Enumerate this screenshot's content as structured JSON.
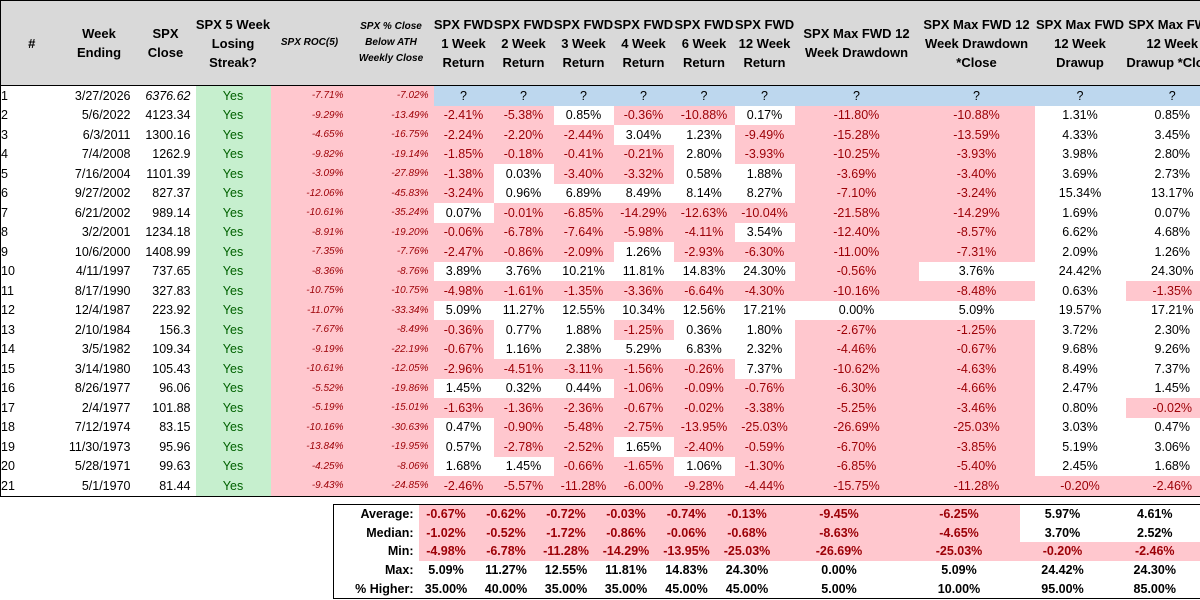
{
  "headers": {
    "idx": "#",
    "week": "Week Ending",
    "close": "SPX Close",
    "streak": "SPX 5 Week Losing Streak?",
    "roc": "SPX ROC(5)",
    "ath": "SPX % Close Below ATH Weekly Close",
    "fwd1": "SPX FWD 1 Week Return",
    "fwd2": "SPX FWD 2 Week Return",
    "fwd3": "SPX FWD 3 Week Return",
    "fwd4": "SPX FWD 4 Week Return",
    "fwd6": "SPX FWD 6 Week Return",
    "fwd12": "SPX FWD 12 Week Return",
    "maxdd": "SPX Max FWD 12 Week Drawdown",
    "maxdd_close": "SPX Max FWD 12 Week Drawdown *Close",
    "maxdu": "SPX Max FWD 12 Week Drawup",
    "maxdu_close": "SPX Max FWD 12 Week Drawup *Close"
  },
  "rows": [
    {
      "idx": "1",
      "week": "3/27/2026",
      "close": "6376.62",
      "streak": "Yes",
      "roc": "-7.71%",
      "ath": "-7.02%",
      "vals": [
        "?",
        "?",
        "?",
        "?",
        "?",
        "?",
        "?",
        "?",
        "?",
        "?"
      ]
    },
    {
      "idx": "2",
      "week": "5/6/2022",
      "close": "4123.34",
      "streak": "Yes",
      "roc": "-9.29%",
      "ath": "-13.49%",
      "vals": [
        "-2.41%",
        "-5.38%",
        "0.85%",
        "-0.36%",
        "-10.88%",
        "0.17%",
        "-11.80%",
        "-10.88%",
        "1.31%",
        "0.85%"
      ]
    },
    {
      "idx": "3",
      "week": "6/3/2011",
      "close": "1300.16",
      "streak": "Yes",
      "roc": "-4.65%",
      "ath": "-16.75%",
      "vals": [
        "-2.24%",
        "-2.20%",
        "-2.44%",
        "3.04%",
        "1.23%",
        "-9.49%",
        "-15.28%",
        "-13.59%",
        "4.33%",
        "3.45%"
      ]
    },
    {
      "idx": "4",
      "week": "7/4/2008",
      "close": "1262.9",
      "streak": "Yes",
      "roc": "-9.82%",
      "ath": "-19.14%",
      "vals": [
        "-1.85%",
        "-0.18%",
        "-0.41%",
        "-0.21%",
        "2.80%",
        "-3.93%",
        "-10.25%",
        "-3.93%",
        "3.98%",
        "2.80%"
      ]
    },
    {
      "idx": "5",
      "week": "7/16/2004",
      "close": "1101.39",
      "streak": "Yes",
      "roc": "-3.09%",
      "ath": "-27.89%",
      "vals": [
        "-1.38%",
        "0.03%",
        "-3.40%",
        "-3.32%",
        "0.58%",
        "1.88%",
        "-3.69%",
        "-3.40%",
        "3.69%",
        "2.73%"
      ]
    },
    {
      "idx": "6",
      "week": "9/27/2002",
      "close": "827.37",
      "streak": "Yes",
      "roc": "-12.06%",
      "ath": "-45.83%",
      "vals": [
        "-3.24%",
        "0.96%",
        "6.89%",
        "8.49%",
        "8.14%",
        "8.27%",
        "-7.10%",
        "-3.24%",
        "15.34%",
        "13.17%"
      ]
    },
    {
      "idx": "7",
      "week": "6/21/2002",
      "close": "989.14",
      "streak": "Yes",
      "roc": "-10.61%",
      "ath": "-35.24%",
      "vals": [
        "0.07%",
        "-0.01%",
        "-6.85%",
        "-14.29%",
        "-12.63%",
        "-10.04%",
        "-21.58%",
        "-14.29%",
        "1.69%",
        "0.07%"
      ]
    },
    {
      "idx": "8",
      "week": "3/2/2001",
      "close": "1234.18",
      "streak": "Yes",
      "roc": "-8.91%",
      "ath": "-19.20%",
      "vals": [
        "-0.06%",
        "-6.78%",
        "-7.64%",
        "-5.98%",
        "-4.11%",
        "3.54%",
        "-12.40%",
        "-8.57%",
        "6.62%",
        "4.68%"
      ]
    },
    {
      "idx": "9",
      "week": "10/6/2000",
      "close": "1408.99",
      "streak": "Yes",
      "roc": "-7.35%",
      "ath": "-7.76%",
      "vals": [
        "-2.47%",
        "-0.86%",
        "-2.09%",
        "1.26%",
        "-2.93%",
        "-6.30%",
        "-11.00%",
        "-7.31%",
        "2.09%",
        "1.26%"
      ]
    },
    {
      "idx": "10",
      "week": "4/11/1997",
      "close": "737.65",
      "streak": "Yes",
      "roc": "-8.36%",
      "ath": "-8.76%",
      "vals": [
        "3.89%",
        "3.76%",
        "10.21%",
        "11.81%",
        "14.83%",
        "24.30%",
        "-0.56%",
        "3.76%",
        "24.42%",
        "24.30%"
      ]
    },
    {
      "idx": "11",
      "week": "8/17/1990",
      "close": "327.83",
      "streak": "Yes",
      "roc": "-10.75%",
      "ath": "-10.75%",
      "vals": [
        "-4.98%",
        "-1.61%",
        "-1.35%",
        "-3.36%",
        "-6.64%",
        "-4.30%",
        "-10.16%",
        "-8.48%",
        "0.63%",
        "-1.35%"
      ]
    },
    {
      "idx": "12",
      "week": "12/4/1987",
      "close": "223.92",
      "streak": "Yes",
      "roc": "-11.07%",
      "ath": "-33.34%",
      "vals": [
        "5.09%",
        "11.27%",
        "12.55%",
        "10.34%",
        "12.56%",
        "17.21%",
        "0.00%",
        "5.09%",
        "19.57%",
        "17.21%"
      ]
    },
    {
      "idx": "13",
      "week": "2/10/1984",
      "close": "156.3",
      "streak": "Yes",
      "roc": "-7.67%",
      "ath": "-8.49%",
      "vals": [
        "-0.36%",
        "0.77%",
        "1.88%",
        "-1.25%",
        "0.36%",
        "1.80%",
        "-2.67%",
        "-1.25%",
        "3.72%",
        "2.30%"
      ]
    },
    {
      "idx": "14",
      "week": "3/5/1982",
      "close": "109.34",
      "streak": "Yes",
      "roc": "-9.19%",
      "ath": "-22.19%",
      "vals": [
        "-0.67%",
        "1.16%",
        "2.38%",
        "5.29%",
        "6.83%",
        "2.32%",
        "-4.46%",
        "-0.67%",
        "9.68%",
        "9.26%"
      ]
    },
    {
      "idx": "15",
      "week": "3/14/1980",
      "close": "105.43",
      "streak": "Yes",
      "roc": "-10.61%",
      "ath": "-12.05%",
      "vals": [
        "-2.96%",
        "-4.51%",
        "-3.11%",
        "-1.56%",
        "-0.26%",
        "7.37%",
        "-10.62%",
        "-4.63%",
        "8.49%",
        "7.37%"
      ]
    },
    {
      "idx": "16",
      "week": "8/26/1977",
      "close": "96.06",
      "streak": "Yes",
      "roc": "-5.52%",
      "ath": "-19.86%",
      "vals": [
        "1.45%",
        "0.32%",
        "0.44%",
        "-1.06%",
        "-0.09%",
        "-0.76%",
        "-6.30%",
        "-4.66%",
        "2.47%",
        "1.45%"
      ]
    },
    {
      "idx": "17",
      "week": "2/4/1977",
      "close": "101.88",
      "streak": "Yes",
      "roc": "-5.19%",
      "ath": "-15.01%",
      "vals": [
        "-1.63%",
        "-1.36%",
        "-2.36%",
        "-0.67%",
        "-0.02%",
        "-3.38%",
        "-5.25%",
        "-3.46%",
        "0.80%",
        "-0.02%"
      ]
    },
    {
      "idx": "18",
      "week": "7/12/1974",
      "close": "83.15",
      "streak": "Yes",
      "roc": "-10.16%",
      "ath": "-30.63%",
      "vals": [
        "0.47%",
        "-0.90%",
        "-5.48%",
        "-2.75%",
        "-13.95%",
        "-25.03%",
        "-26.69%",
        "-25.03%",
        "3.03%",
        "0.47%"
      ]
    },
    {
      "idx": "19",
      "week": "11/30/1973",
      "close": "95.96",
      "streak": "Yes",
      "roc": "-13.84%",
      "ath": "-19.95%",
      "vals": [
        "0.57%",
        "-2.78%",
        "-2.52%",
        "1.65%",
        "-2.40%",
        "-0.59%",
        "-6.70%",
        "-3.85%",
        "5.19%",
        "3.06%"
      ]
    },
    {
      "idx": "20",
      "week": "5/28/1971",
      "close": "99.63",
      "streak": "Yes",
      "roc": "-4.25%",
      "ath": "-8.06%",
      "vals": [
        "1.68%",
        "1.45%",
        "-0.66%",
        "-1.65%",
        "1.06%",
        "-1.30%",
        "-6.85%",
        "-5.40%",
        "2.45%",
        "1.68%"
      ]
    },
    {
      "idx": "21",
      "week": "5/1/1970",
      "close": "81.44",
      "streak": "Yes",
      "roc": "-9.43%",
      "ath": "-24.85%",
      "vals": [
        "-2.46%",
        "-5.57%",
        "-11.28%",
        "-6.00%",
        "-9.28%",
        "-4.44%",
        "-15.75%",
        "-11.28%",
        "-0.20%",
        "-2.46%"
      ]
    }
  ],
  "summary": [
    {
      "label": "Average:",
      "vals": [
        "-0.67%",
        "-0.62%",
        "-0.72%",
        "-0.03%",
        "-0.74%",
        "-0.13%",
        "-9.45%",
        "-6.25%",
        "5.97%",
        "4.61%"
      ]
    },
    {
      "label": "Median:",
      "vals": [
        "-1.02%",
        "-0.52%",
        "-1.72%",
        "-0.86%",
        "-0.06%",
        "-0.68%",
        "-8.63%",
        "-4.65%",
        "3.70%",
        "2.52%"
      ]
    },
    {
      "label": "Min:",
      "vals": [
        "-4.98%",
        "-6.78%",
        "-11.28%",
        "-14.29%",
        "-13.95%",
        "-25.03%",
        "-26.69%",
        "-25.03%",
        "-0.20%",
        "-2.46%"
      ]
    },
    {
      "label": "Max:",
      "vals": [
        "5.09%",
        "11.27%",
        "12.55%",
        "11.81%",
        "14.83%",
        "24.30%",
        "0.00%",
        "5.09%",
        "24.42%",
        "24.30%"
      ]
    },
    {
      "label": "% Higher:",
      "vals": [
        "35.00%",
        "40.00%",
        "35.00%",
        "35.00%",
        "45.00%",
        "45.00%",
        "5.00%",
        "10.00%",
        "95.00%",
        "85.00%"
      ]
    }
  ],
  "colors": {
    "neg_fill": "#ffc7ce",
    "neg_text": "#9c0006",
    "pos_fill": "#c6efce",
    "pos_text": "#006100",
    "pending_fill": "#bdd7ee",
    "header_fill": "#d9d9d9"
  }
}
